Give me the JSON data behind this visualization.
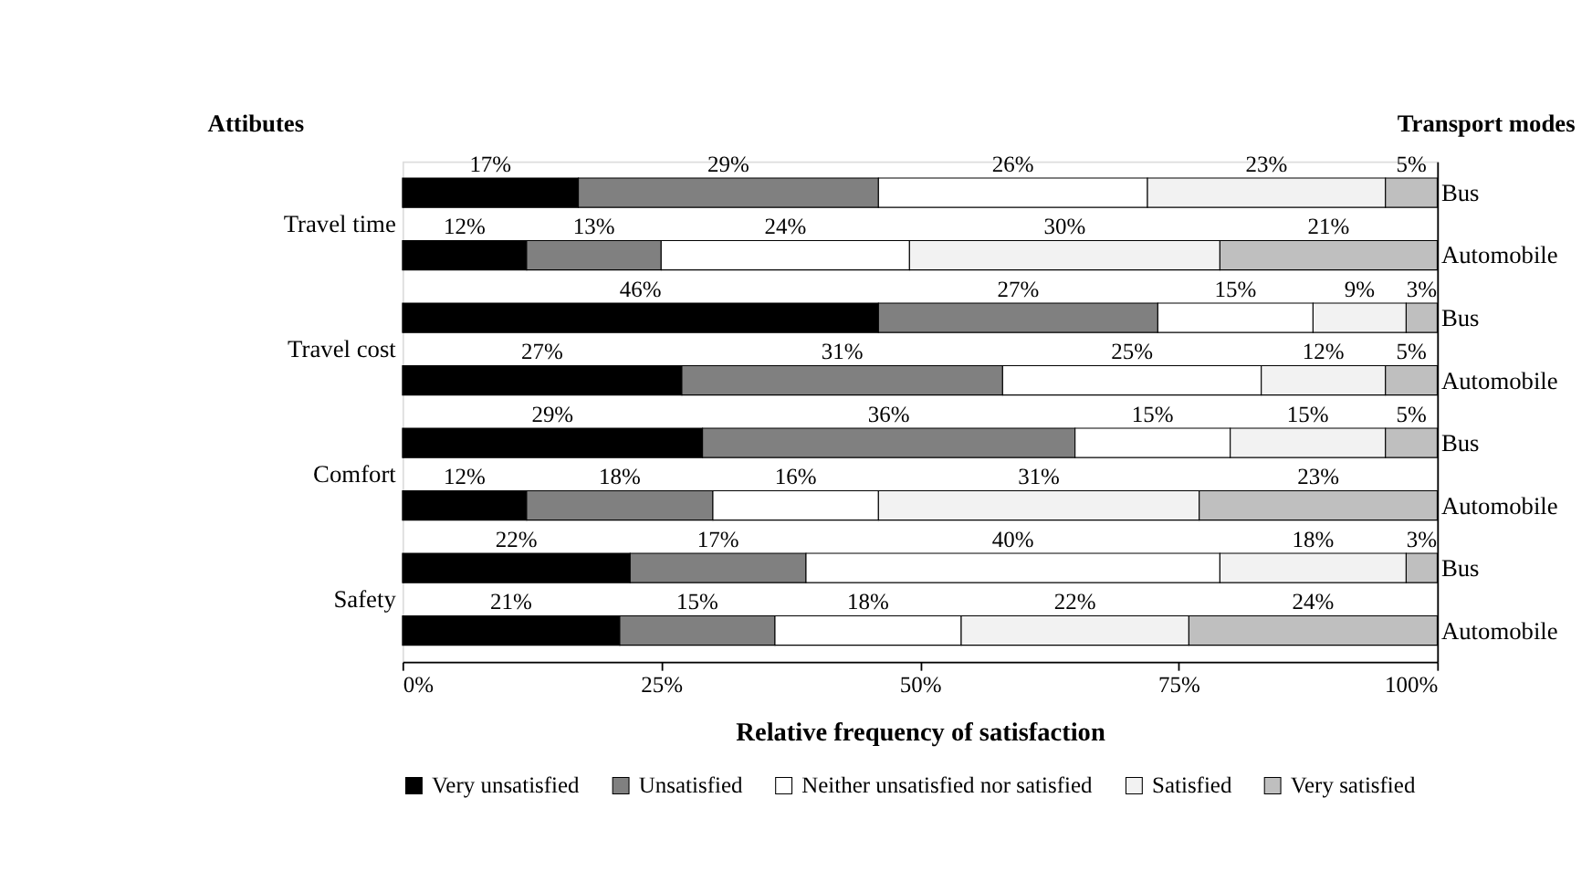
{
  "chart_data": {
    "type": "bar",
    "orientation": "horizontal",
    "stacked": true,
    "ylabel": "Attibutes",
    "y2label": "Transport modes",
    "xlabel": "Relative frequency of satisfaction",
    "categories": [
      "Bus",
      "Automobile",
      "Bus",
      "Automobile",
      "Bus",
      "Automobile",
      "Bus",
      "Automobile"
    ],
    "annotations": [
      "Travel time",
      "Travel cost",
      "Comfort",
      "Safety"
    ],
    "series": [
      {
        "name": "Very unsatisfied",
        "color": "#000000",
        "values": [
          17,
          12,
          46,
          27,
          29,
          12,
          22,
          21
        ],
        "value_labels": [
          "17%",
          "12%",
          "46%",
          "27%",
          "29%",
          "12%",
          "22%",
          "21%"
        ]
      },
      {
        "name": "Unsatisfied",
        "color": "#808080",
        "values": [
          29,
          13,
          27,
          31,
          36,
          18,
          17,
          15
        ],
        "value_labels": [
          "29%",
          "13%",
          "27%",
          "31%",
          "36%",
          "18%",
          "17%",
          "15%"
        ]
      },
      {
        "name": "Neither unsatisfied nor satisfied",
        "color": "#ffffff",
        "values": [
          26,
          24,
          15,
          25,
          15,
          16,
          40,
          18
        ],
        "value_labels": [
          "26%",
          "24%",
          "15%",
          "25%",
          "15%",
          "16%",
          "40%",
          "18%"
        ]
      },
      {
        "name": "Satisfied",
        "color": "#f2f2f2",
        "values": [
          23,
          30,
          9,
          12,
          15,
          31,
          18,
          22
        ],
        "value_labels": [
          "23%",
          "30%",
          "9%",
          "12%",
          "15%",
          "31%",
          "18%",
          "22%"
        ]
      },
      {
        "name": "Very satisfied",
        "color": "#bfbfbf",
        "values": [
          5,
          21,
          3,
          5,
          5,
          23,
          3,
          24
        ],
        "value_labels": [
          "5%",
          "21%",
          "3%",
          "5%",
          "5%",
          "23%",
          "3%",
          "24%"
        ]
      }
    ],
    "xlim": [
      0,
      100
    ],
    "xticks": [
      {
        "value": 0,
        "label": "0%"
      },
      {
        "value": 25,
        "label": "25%"
      },
      {
        "value": 50,
        "label": "50%"
      },
      {
        "value": 75,
        "label": "75%"
      },
      {
        "value": 100,
        "label": "100%"
      }
    ],
    "grid": false,
    "legend": "bottom"
  }
}
